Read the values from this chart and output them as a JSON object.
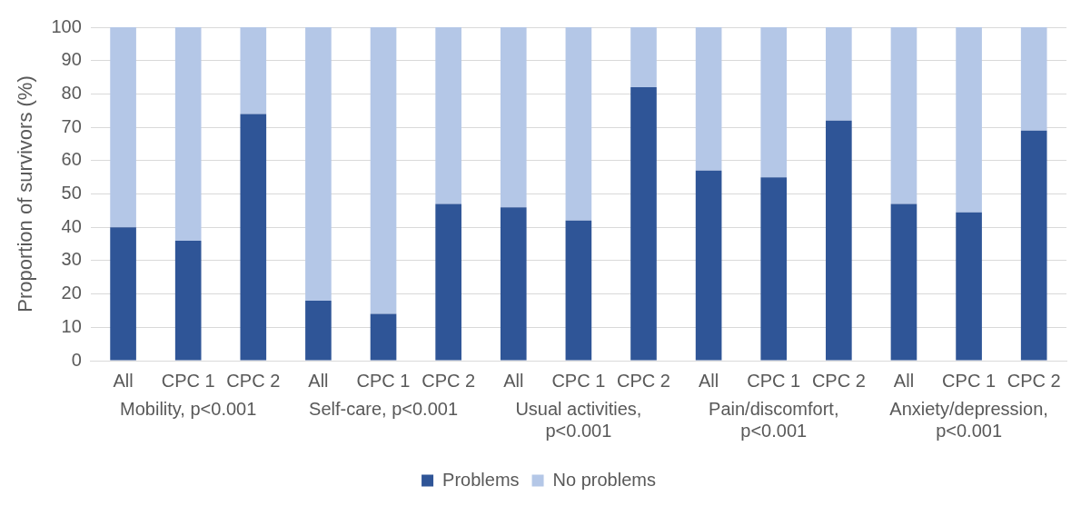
{
  "chart_data": {
    "type": "bar",
    "stacked": true,
    "ylabel": "Proportion of survivors (%)",
    "categories": [
      "All",
      "CPC 1",
      "CPC 2",
      "All",
      "CPC 1",
      "CPC 2",
      "All",
      "CPC 1",
      "CPC 2",
      "All",
      "CPC 1",
      "CPC 2",
      "All",
      "CPC 1",
      "CPC 2"
    ],
    "series": [
      {
        "name": "Problems",
        "color": "#2f5597",
        "values": [
          40,
          36,
          74,
          18,
          14,
          47,
          46,
          42,
          82,
          57,
          55,
          72,
          47,
          44.5,
          69
        ]
      },
      {
        "name": "No problems",
        "color": "#b4c7e7",
        "values": [
          60,
          64,
          26,
          82,
          86,
          53,
          54,
          58,
          18,
          43,
          45,
          28,
          53,
          55.5,
          31
        ]
      }
    ],
    "annotations": [
      "Mobility, p<0.001",
      "Self-care, p<0.001",
      "Usual activities, p<0.001",
      "Pain/discomfort, p<0.001",
      "Anxiety/depression, p<0.001"
    ],
    "ylim": [
      0,
      100
    ],
    "yticks": [
      0,
      10,
      20,
      30,
      40,
      50,
      60,
      70,
      80,
      90,
      100
    ],
    "grid": "y",
    "legend": "bottom"
  }
}
